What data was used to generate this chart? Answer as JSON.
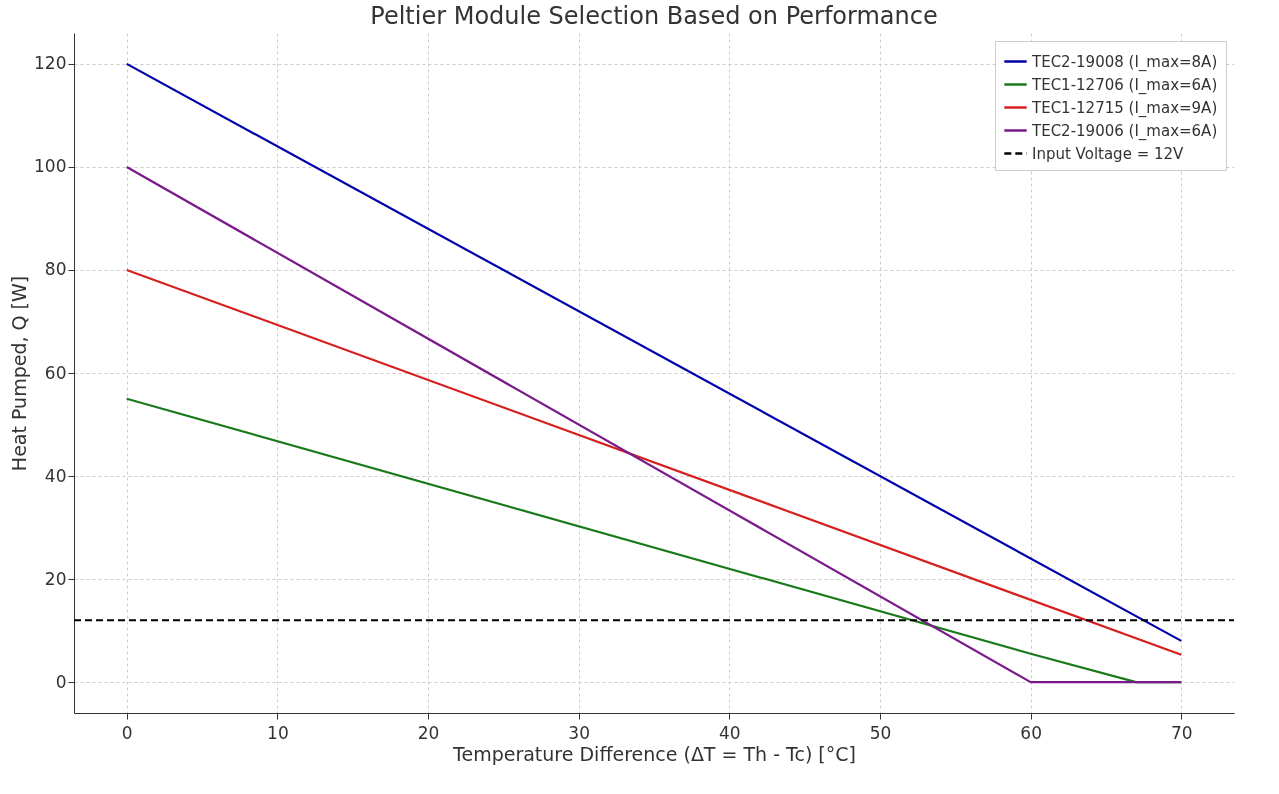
{
  "chart_data": {
    "type": "line",
    "title": "Peltier Module Selection Based on Performance",
    "xlabel": "Temperature Difference (ΔT = Th - Tc) [°C]",
    "ylabel": "Heat Pumped, Q [W]",
    "series": [
      {
        "name": "TEC2-19008 (I_max=8A)",
        "color": "#0000aa",
        "x": [
          0,
          70
        ],
        "values": [
          120,
          8
        ]
      },
      {
        "name": "TEC1-12706 (I_max=6A)",
        "color": "#1a7a1a",
        "x": [
          0,
          60,
          67,
          70
        ],
        "values": [
          55,
          5.5,
          0,
          0
        ]
      },
      {
        "name": "TEC1-12715 (I_max=9A)",
        "color": "#d62020",
        "x": [
          0,
          70
        ],
        "values": [
          80,
          5.3
        ]
      },
      {
        "name": "TEC2-19006 (I_max=6A)",
        "color": "#7a1a8a",
        "x": [
          0,
          60,
          70
        ],
        "values": [
          100,
          0,
          0
        ]
      }
    ],
    "ref_lines": [
      {
        "axis": "y",
        "value": 12,
        "label": "Input Voltage = 12V",
        "color": "#000000",
        "line_style": "dashed"
      }
    ],
    "xlim": [
      -3.5,
      73.5
    ],
    "ylim": [
      -6,
      126
    ],
    "xticks": [
      0,
      10,
      20,
      30,
      40,
      50,
      60,
      70
    ],
    "yticks": [
      0,
      20,
      40,
      60,
      80,
      100,
      120
    ],
    "grid": true,
    "legend": "top right",
    "line_style": "solid",
    "marker": "none"
  }
}
